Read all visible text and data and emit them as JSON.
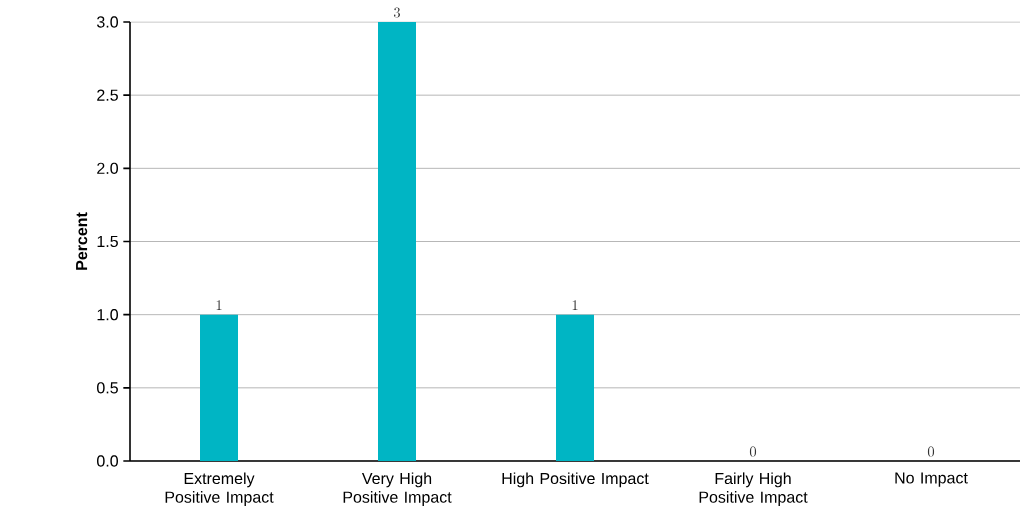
{
  "chart_data": {
    "type": "bar",
    "ylabel": "Percent",
    "categories": [
      "Extremely Positive Impact",
      "Very High Positive Impact",
      "High Positive Impact",
      "Fairly High Positive Impact",
      "No Impact"
    ],
    "values": [
      1,
      3,
      1,
      0,
      0
    ],
    "color": "#00b5c4",
    "data_labels": true,
    "grid": "y",
    "ylim": [
      0,
      3
    ],
    "yticks": [
      {
        "value": 0,
        "label": "0.0"
      },
      {
        "value": 0.5,
        "label": "0.5"
      },
      {
        "value": 1,
        "label": "1.0"
      },
      {
        "value": 1.5,
        "label": "1.5"
      },
      {
        "value": 2,
        "label": "2.0"
      },
      {
        "value": 2.5,
        "label": "2.5"
      },
      {
        "value": 3,
        "label": "3.0"
      }
    ]
  }
}
